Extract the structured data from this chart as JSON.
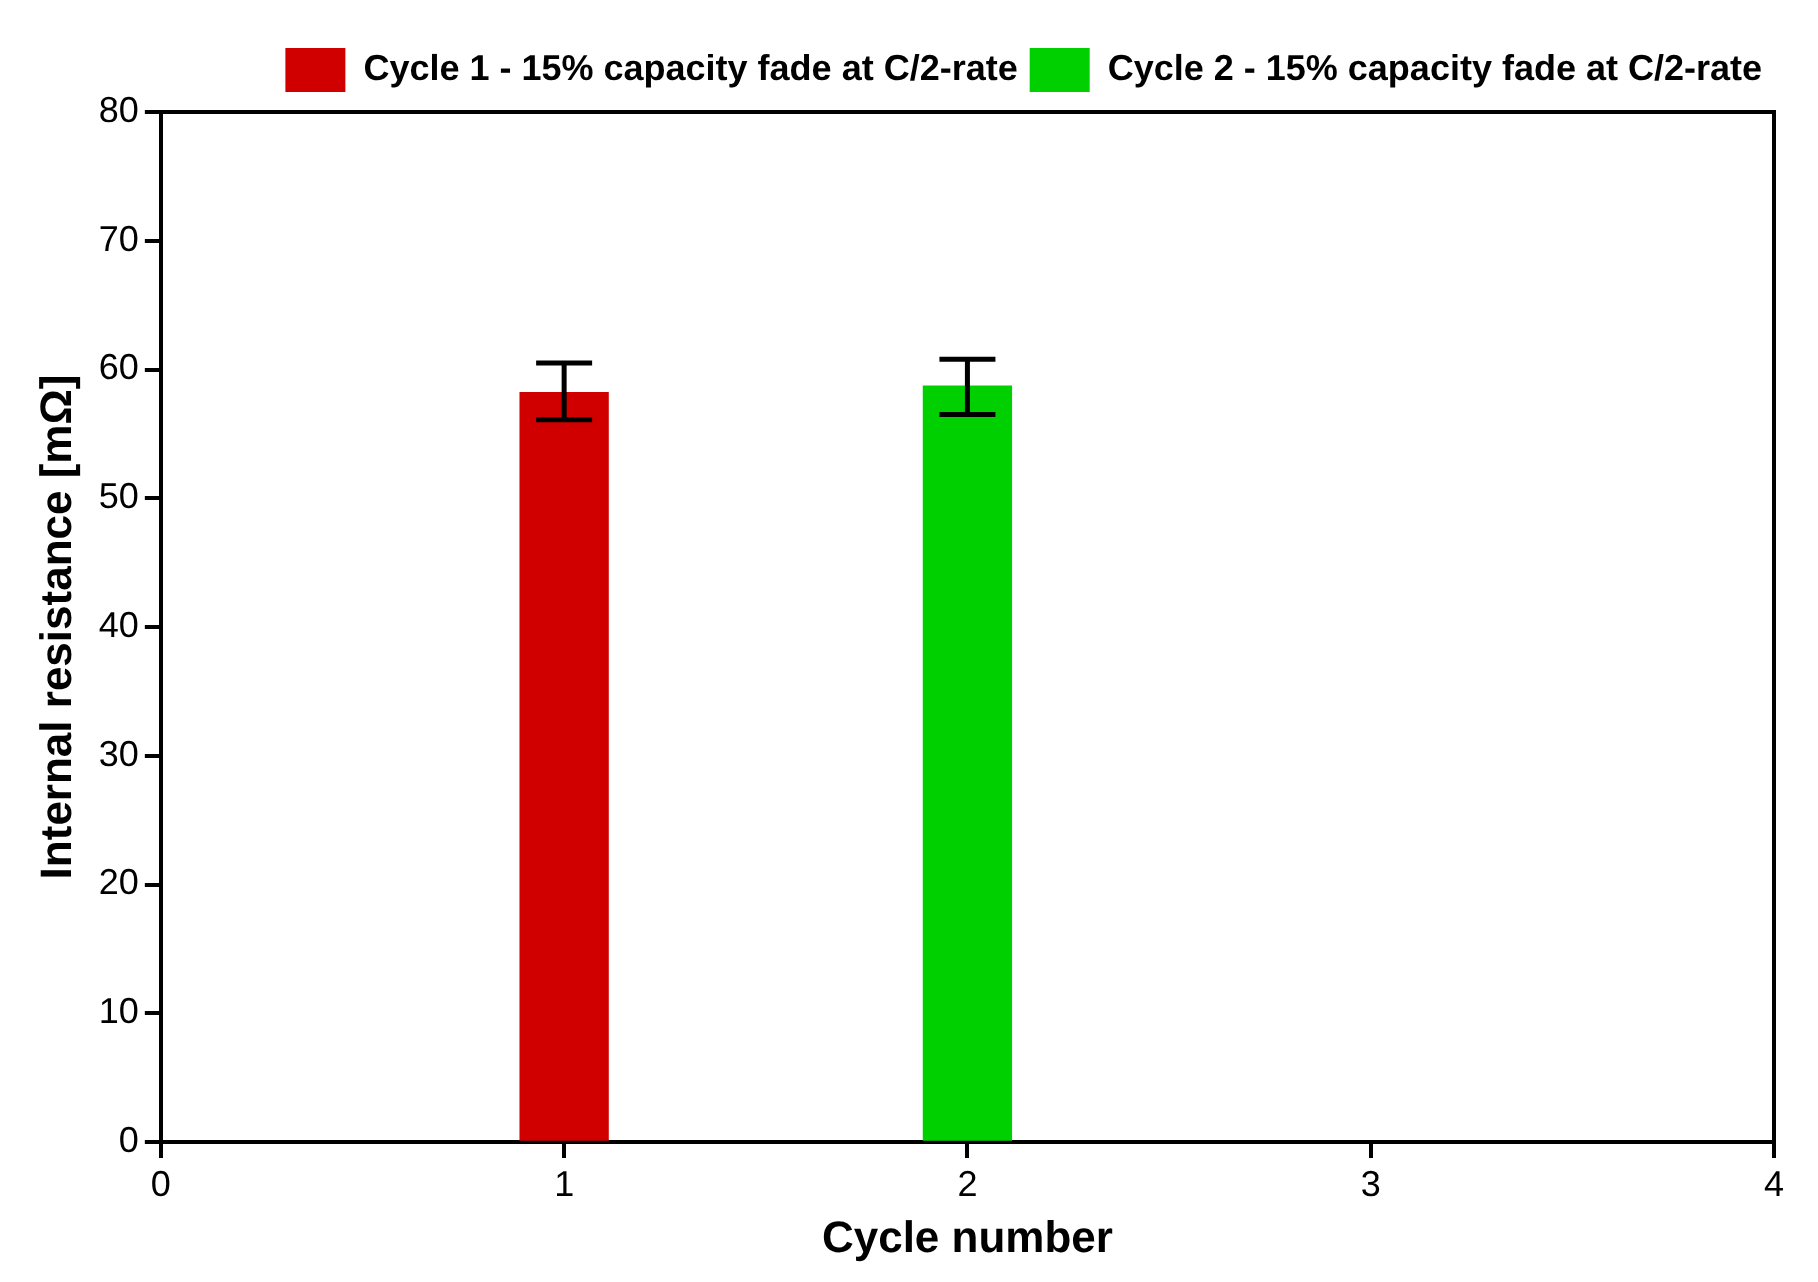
{
  "chart_data": {
    "type": "bar",
    "xlabel": "Cycle number",
    "ylabel": "Internal resistance [mΩ]",
    "xlim": [
      0,
      4
    ],
    "xticks": [
      0,
      1,
      2,
      3,
      4
    ],
    "ylim": [
      0,
      80
    ],
    "yticks": [
      0,
      10,
      20,
      30,
      40,
      50,
      60,
      70,
      80
    ],
    "grid": false,
    "legend": "top right",
    "series": [
      {
        "name": "Cycle 1 - 15% capacity fade at C/2-rate",
        "color": "#d00000",
        "x": [
          1
        ],
        "values": [
          58.2
        ],
        "errors": [
          [
            56.1,
            60.5
          ]
        ]
      },
      {
        "name": "Cycle 2 - 15% capacity fade at C/2-rate",
        "color": "#00d000",
        "x": [
          2
        ],
        "values": [
          58.7
        ],
        "errors": [
          [
            56.5,
            60.8
          ]
        ]
      }
    ]
  }
}
